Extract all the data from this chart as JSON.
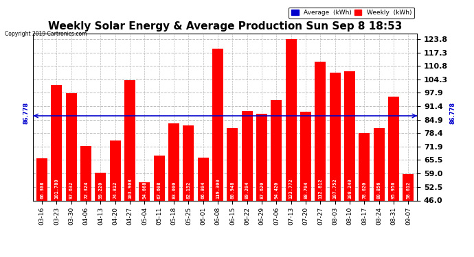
{
  "title": "Weekly Solar Energy & Average Production Sun Sep 8 18:53",
  "copyright": "Copyright 2019 Cartronics.com",
  "categories": [
    "03-16",
    "03-23",
    "03-30",
    "04-06",
    "04-13",
    "04-20",
    "04-27",
    "05-04",
    "05-11",
    "05-18",
    "05-25",
    "06-01",
    "06-08",
    "06-15",
    "06-22",
    "06-29",
    "07-06",
    "07-13",
    "07-20",
    "07-27",
    "08-03",
    "08-10",
    "08-17",
    "08-24",
    "08-31",
    "09-07"
  ],
  "values": [
    66.308,
    101.78,
    97.632,
    72.324,
    59.22,
    74.812,
    103.908,
    54.668,
    67.608,
    83.0,
    82.152,
    66.804,
    119.3,
    80.948,
    89.204,
    87.62,
    94.42,
    123.772,
    88.704,
    112.812,
    107.752,
    108.24,
    78.62,
    80.856,
    95.956,
    58.612
  ],
  "average": 86.778,
  "bar_color": "#ff0000",
  "average_line_color": "#0000cc",
  "ylim_min": 46.0,
  "ylim_max": 126.5,
  "yticks": [
    46.0,
    52.5,
    59.0,
    65.5,
    71.9,
    78.4,
    84.9,
    91.4,
    97.9,
    104.3,
    110.8,
    117.3,
    123.8
  ],
  "background_color": "#ffffff",
  "grid_color": "#bbbbbb",
  "title_fontsize": 11,
  "legend_avg_color": "#0000cc",
  "legend_weekly_color": "#ff0000",
  "value_label_fontsize": 5.0,
  "ytick_fontsize": 8,
  "xtick_fontsize": 6.5
}
